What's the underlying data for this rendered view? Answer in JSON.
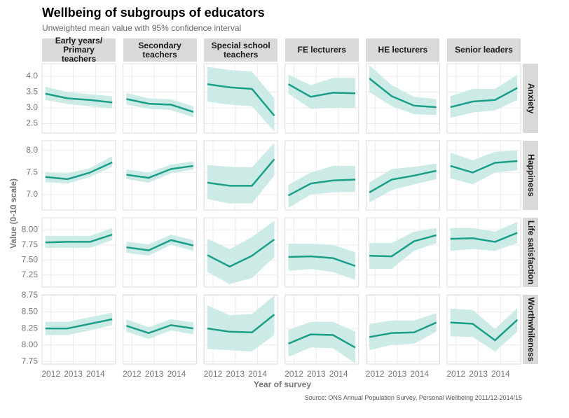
{
  "chart_data": {
    "type": "line",
    "title": "Wellbeing of subgroups of educators",
    "subtitle": "Unweighted mean value with 95% confidence interval",
    "x_label": "Year of survey",
    "y_label": "Value (0-10 scale)",
    "source": "Source: ONS Annual Population Survey, Personal Wellbeing 2011/12-2014/15",
    "color": "#1a9e8a",
    "band_color": "#cdebe6",
    "grid": true,
    "x": [
      2011.75,
      2012.75,
      2013.75,
      2014.75
    ],
    "xlim": [
      2011.6,
      2014.9
    ],
    "xticks": [
      2012,
      2013,
      2014
    ],
    "columns": [
      "Early years/ Primary teachers",
      "Secondary teachers",
      "Special school teachers",
      "FE lecturers",
      "HE lecturers",
      "Senior leaders"
    ],
    "rows": [
      {
        "name": "Anxiety",
        "ylim": [
          2.2,
          4.4
        ],
        "yticks": [
          {
            "value": 2.5,
            "label": "2.5"
          },
          {
            "value": 3,
            "label": "3.0"
          },
          {
            "value": 3.5,
            "label": "3.5"
          },
          {
            "value": 4,
            "label": "4.0"
          }
        ],
        "panels": [
          {
            "values": [
              3.45,
              3.3,
              3.25,
              3.17
            ],
            "lower": [
              3.25,
              3.12,
              3.05,
              2.98
            ],
            "upper": [
              3.67,
              3.5,
              3.43,
              3.37
            ]
          },
          {
            "values": [
              3.28,
              3.13,
              3.1,
              2.87
            ],
            "lower": [
              3.1,
              2.97,
              2.93,
              2.7
            ],
            "upper": [
              3.47,
              3.3,
              3.27,
              3.05
            ]
          },
          {
            "values": [
              3.75,
              3.65,
              3.6,
              2.75
            ],
            "lower": [
              3.2,
              3.1,
              3.05,
              2.25
            ],
            "upper": [
              4.3,
              4.2,
              4.15,
              3.3
            ]
          },
          {
            "values": [
              3.75,
              3.35,
              3.48,
              3.46
            ],
            "lower": [
              3.45,
              2.97,
              3.0,
              3.0
            ],
            "upper": [
              4.05,
              3.72,
              3.95,
              3.95
            ]
          },
          {
            "values": [
              3.93,
              3.37,
              3.07,
              3.02
            ],
            "lower": [
              3.5,
              3.05,
              2.8,
              2.77
            ],
            "upper": [
              4.35,
              3.72,
              3.35,
              3.28
            ]
          },
          {
            "values": [
              3.02,
              3.2,
              3.25,
              3.63
            ],
            "lower": [
              2.68,
              2.85,
              2.92,
              3.25
            ],
            "upper": [
              3.37,
              3.6,
              3.6,
              4.05
            ]
          }
        ]
      },
      {
        "name": "Happiness",
        "ylim": [
          6.65,
          8.22
        ],
        "yticks": [
          {
            "value": 7,
            "label": "7.0"
          },
          7.5,
          {
            "value": 8,
            "label": "8.0"
          }
        ],
        "panels": [
          {
            "values": [
              7.4,
              7.35,
              7.5,
              7.73
            ],
            "lower": [
              7.28,
              7.25,
              7.4,
              7.63
            ],
            "upper": [
              7.5,
              7.48,
              7.6,
              7.87
            ]
          },
          {
            "values": [
              7.45,
              7.38,
              7.58,
              7.65
            ],
            "lower": [
              7.35,
              7.27,
              7.48,
              7.57
            ],
            "upper": [
              7.57,
              7.5,
              7.68,
              7.75
            ]
          },
          {
            "values": [
              7.27,
              7.2,
              7.2,
              7.8
            ],
            "lower": [
              6.9,
              6.8,
              6.8,
              7.43
            ],
            "upper": [
              7.67,
              7.63,
              7.62,
              8.17
            ]
          },
          {
            "values": [
              6.98,
              7.25,
              7.32,
              7.34
            ],
            "lower": [
              6.7,
              7.0,
              7.05,
              7.06
            ],
            "upper": [
              7.22,
              7.5,
              7.65,
              7.65
            ]
          },
          {
            "values": [
              7.05,
              7.34,
              7.43,
              7.54
            ],
            "lower": [
              6.82,
              7.1,
              7.23,
              7.35
            ],
            "upper": [
              7.27,
              7.58,
              7.63,
              7.7
            ]
          },
          {
            "values": [
              7.65,
              7.5,
              7.72,
              7.76
            ],
            "lower": [
              7.37,
              7.23,
              7.5,
              7.55
            ],
            "upper": [
              7.95,
              7.78,
              7.97,
              8.0
            ]
          }
        ]
      },
      {
        "name": "Life satisfaction",
        "ylim": [
          7.05,
          8.2
        ],
        "yticks": [
          7.25,
          {
            "value": 7.5,
            "label": "7.50"
          },
          7.75,
          {
            "value": 8,
            "label": "8.00"
          }
        ],
        "panels": [
          {
            "values": [
              7.79,
              7.8,
              7.8,
              7.92
            ],
            "lower": [
              7.7,
              7.7,
              7.7,
              7.83
            ],
            "upper": [
              7.9,
              7.9,
              7.9,
              8.03
            ]
          },
          {
            "values": [
              7.71,
              7.66,
              7.83,
              7.74
            ],
            "lower": [
              7.62,
              7.57,
              7.75,
              7.65
            ],
            "upper": [
              7.8,
              7.76,
              7.92,
              7.83
            ]
          },
          {
            "values": [
              7.58,
              7.39,
              7.57,
              7.84
            ],
            "lower": [
              7.3,
              7.1,
              7.2,
              7.55
            ],
            "upper": [
              7.85,
              7.68,
              7.88,
              8.15
            ]
          },
          {
            "values": [
              7.55,
              7.56,
              7.53,
              7.4
            ],
            "lower": [
              7.32,
              7.35,
              7.3,
              7.17
            ],
            "upper": [
              7.77,
              7.77,
              7.75,
              7.63
            ]
          },
          {
            "values": [
              7.57,
              7.56,
              7.81,
              7.91
            ],
            "lower": [
              7.35,
              7.35,
              7.65,
              7.78
            ],
            "upper": [
              7.78,
              7.78,
              7.97,
              8.03
            ]
          },
          {
            "values": [
              7.85,
              7.86,
              7.8,
              7.95
            ],
            "lower": [
              7.65,
              7.68,
              7.65,
              7.78
            ],
            "upper": [
              8.03,
              8.03,
              7.97,
              8.13
            ]
          }
        ]
      },
      {
        "name": "Worthwhileness",
        "ylim": [
          7.71,
          8.76
        ],
        "yticks": [
          7.75,
          {
            "value": 8,
            "label": "8.00"
          },
          8.25,
          {
            "value": 8.5,
            "label": "8.50"
          },
          8.75
        ],
        "panels": [
          {
            "values": [
              8.25,
              8.25,
              8.32,
              8.39
            ],
            "lower": [
              8.15,
              8.15,
              8.22,
              8.3
            ],
            "upper": [
              8.35,
              8.35,
              8.42,
              8.49
            ]
          },
          {
            "values": [
              8.29,
              8.18,
              8.3,
              8.25
            ],
            "lower": [
              8.2,
              8.09,
              8.22,
              8.16
            ],
            "upper": [
              8.39,
              8.27,
              8.39,
              8.34
            ]
          },
          {
            "values": [
              8.25,
              8.2,
              8.19,
              8.46
            ],
            "lower": [
              7.94,
              7.92,
              7.9,
              8.15
            ],
            "upper": [
              8.6,
              8.45,
              8.47,
              8.75
            ]
          },
          {
            "values": [
              8.02,
              8.16,
              8.15,
              7.96
            ],
            "lower": [
              7.82,
              7.96,
              7.95,
              7.72
            ],
            "upper": [
              8.23,
              8.35,
              8.35,
              8.2
            ]
          },
          {
            "values": [
              8.12,
              8.18,
              8.19,
              8.34
            ],
            "lower": [
              7.92,
              8.0,
              8.02,
              8.2
            ],
            "upper": [
              8.32,
              8.37,
              8.37,
              8.48
            ]
          },
          {
            "values": [
              8.34,
              8.32,
              8.07,
              8.38
            ],
            "lower": [
              8.13,
              8.12,
              7.9,
              8.2
            ],
            "upper": [
              8.55,
              8.53,
              8.24,
              8.56
            ]
          }
        ]
      }
    ]
  }
}
